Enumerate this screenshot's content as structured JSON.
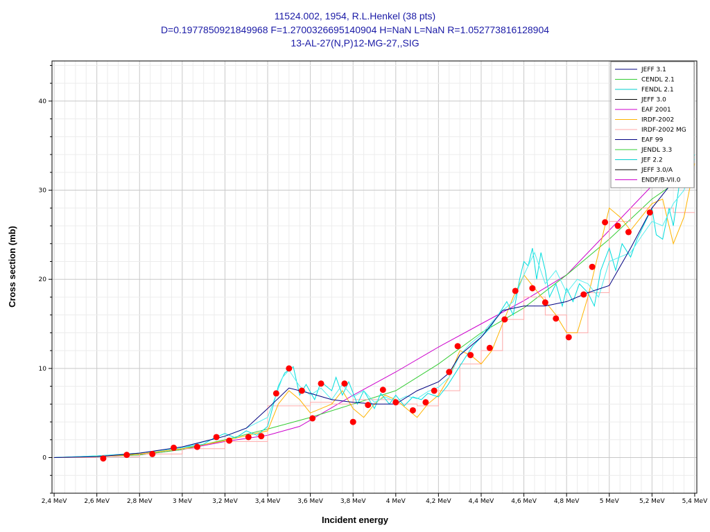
{
  "chart_data": {
    "type": "line",
    "title_lines": [
      "11524.002, 1954, R.L.Henkel (38 pts)",
      "D=0.1977850921849968 F=1.2700326695140904 H=NaN L=NaN R=1.052773816128904",
      "13-AL-27(N,P)12-MG-27,,SIG"
    ],
    "xlabel": "Incident energy",
    "ylabel": "Cross section (mb)",
    "xlim": [
      2.39,
      5.41
    ],
    "ylim": [
      -4,
      44.5
    ],
    "x_ticks": [
      2.4,
      2.6,
      2.8,
      3.0,
      3.2,
      3.4,
      3.6,
      3.8,
      4.0,
      4.2,
      4.4,
      4.6,
      4.8,
      5.0,
      5.2,
      5.4
    ],
    "x_tick_labels": [
      "2,4 MeV",
      "2,6 MeV",
      "2,8 MeV",
      "3 MeV",
      "3,2 MeV",
      "3,4 MeV",
      "3,6 MeV",
      "3,8 MeV",
      "4 MeV",
      "4,2 MeV",
      "4,4 MeV",
      "4,6 MeV",
      "4,8 MeV",
      "5 MeV",
      "5,2 MeV",
      "5,4 MeV"
    ],
    "y_ticks": [
      0,
      10,
      20,
      30,
      40
    ],
    "y_tick_labels": [
      "0",
      "10",
      "20",
      "30",
      "40"
    ],
    "grid": true,
    "legend_position": "top-right",
    "legend": [
      {
        "name": "JEFF 3.1",
        "color": "#000080"
      },
      {
        "name": "CENDL 2.1",
        "color": "#33cc33"
      },
      {
        "name": "FENDL 2.1",
        "color": "#00cccc"
      },
      {
        "name": "JEFF 3.0",
        "color": "#000000"
      },
      {
        "name": "EAF 2001",
        "color": "#cc00cc"
      },
      {
        "name": "IRDF-2002",
        "color": "#ffb300"
      },
      {
        "name": "IRDF-2002 MG",
        "color": "#ffaaaa"
      },
      {
        "name": "EAF 99",
        "color": "#000080"
      },
      {
        "name": "JENDL 3.3",
        "color": "#33cc33"
      },
      {
        "name": "JEF 2.2",
        "color": "#00cccc"
      },
      {
        "name": "JEFF 3.0/A",
        "color": "#000000"
      },
      {
        "name": "ENDF/B-VII.0",
        "color": "#cc00cc"
      }
    ],
    "series": [
      {
        "name": "EAF 2001",
        "color": "#cc00cc",
        "width": 1,
        "x": [
          2.4,
          2.8,
          3.0,
          3.2,
          3.4,
          3.55,
          3.8,
          4.0,
          4.2,
          4.4,
          4.6,
          4.8,
          5.0,
          5.2,
          5.35
        ],
        "y": [
          0,
          0.3,
          0.9,
          1.8,
          2.5,
          3.5,
          7.0,
          9.6,
          12.4,
          15.0,
          17.6,
          20.5,
          25.5,
          30.5,
          33.5
        ]
      },
      {
        "name": "CENDL 2.1",
        "color": "#33cc33",
        "width": 1,
        "x": [
          2.4,
          2.8,
          3.0,
          3.2,
          3.4,
          3.6,
          3.8,
          4.0,
          4.2,
          4.4,
          4.6,
          4.8,
          5.0,
          5.2,
          5.35
        ],
        "y": [
          0,
          0.3,
          0.9,
          2.0,
          3.2,
          4.5,
          6.0,
          7.5,
          10.5,
          14.0,
          16.8,
          20.5,
          24.5,
          29.0,
          31.5
        ]
      },
      {
        "name": "IRDF-2002 MG",
        "color": "#ffaaaa",
        "width": 1,
        "step": true,
        "x": [
          2.4,
          2.6,
          2.8,
          3.0,
          3.2,
          3.4,
          3.6,
          3.7,
          3.8,
          3.9,
          4.0,
          4.1,
          4.2,
          4.3,
          4.4,
          4.5,
          4.6,
          4.7,
          4.8,
          4.9,
          5.0,
          5.1,
          5.2,
          5.3,
          5.4
        ],
        "y": [
          0,
          0.1,
          0.4,
          1.0,
          1.8,
          5.8,
          6.2,
          6.0,
          6.5,
          6.5,
          6.0,
          5.8,
          7.5,
          10.5,
          12.0,
          15.5,
          18.0,
          16.0,
          14.0,
          18.5,
          26.5,
          28.0,
          28.0,
          27.5,
          27.5
        ]
      },
      {
        "name": "IRDF-2002",
        "color": "#ffb300",
        "width": 1,
        "x": [
          2.4,
          2.6,
          2.8,
          3.0,
          3.2,
          3.4,
          3.45,
          3.5,
          3.55,
          3.6,
          3.65,
          3.7,
          3.75,
          3.8,
          3.85,
          3.9,
          3.95,
          4.0,
          4.05,
          4.1,
          4.15,
          4.2,
          4.25,
          4.3,
          4.35,
          4.4,
          4.45,
          4.5,
          4.55,
          4.6,
          4.65,
          4.7,
          4.75,
          4.8,
          4.85,
          4.9,
          4.95,
          5.0,
          5.05,
          5.1,
          5.15,
          5.2,
          5.25,
          5.3,
          5.35,
          5.4
        ],
        "y": [
          0,
          0.1,
          0.4,
          1.0,
          1.9,
          3.0,
          6.0,
          7.5,
          6.5,
          5.0,
          5.5,
          6.0,
          7.5,
          5.5,
          4.5,
          6.0,
          7.0,
          6.5,
          5.5,
          4.5,
          6.0,
          7.0,
          9.0,
          12.0,
          11.5,
          10.5,
          12.0,
          15.0,
          18.0,
          20.5,
          19.0,
          17.5,
          16.0,
          14.0,
          14.0,
          18.0,
          23.0,
          28.0,
          27.0,
          25.5,
          27.0,
          28.5,
          29.0,
          24.0,
          27.0,
          33.0
        ]
      },
      {
        "name": "FENDL 2.1",
        "color": "#00dddd",
        "width": 1,
        "x": [
          2.4,
          2.6,
          2.8,
          3.0,
          3.1,
          3.15,
          3.2,
          3.25,
          3.3,
          3.35,
          3.4,
          3.45,
          3.48,
          3.52,
          3.55,
          3.58,
          3.62,
          3.65,
          3.7,
          3.72,
          3.75,
          3.78,
          3.82,
          3.85,
          3.9,
          3.93,
          3.97,
          4.0,
          4.04,
          4.08,
          4.12,
          4.15,
          4.2,
          4.24,
          4.28,
          4.32,
          4.36,
          4.4,
          4.44,
          4.48,
          4.52,
          4.55,
          4.58,
          4.6,
          4.62,
          4.64,
          4.66,
          4.68,
          4.7,
          4.72,
          4.75,
          4.78,
          4.8,
          4.83,
          4.86,
          4.9,
          4.93,
          4.96,
          5.0,
          5.03,
          5.06,
          5.1,
          5.13,
          5.16,
          5.2,
          5.22,
          5.25,
          5.28,
          5.3,
          5.33,
          5.36,
          5.4
        ],
        "y": [
          0,
          0.2,
          0.5,
          1.1,
          1.5,
          2.2,
          2.7,
          2.2,
          3.0,
          2.5,
          3.5,
          8.0,
          9.5,
          10.2,
          7.0,
          8.2,
          6.5,
          8.5,
          7.5,
          9.0,
          7.0,
          8.5,
          6.0,
          7.5,
          5.5,
          7.2,
          6.0,
          7.0,
          5.8,
          6.8,
          6.5,
          7.2,
          6.8,
          8.0,
          9.5,
          11.0,
          12.5,
          13.5,
          14.5,
          16.0,
          17.5,
          16.0,
          20.0,
          22.0,
          21.5,
          23.5,
          20.0,
          23.0,
          21.0,
          18.0,
          19.5,
          17.0,
          19.0,
          17.5,
          19.5,
          18.5,
          17.0,
          21.0,
          23.5,
          21.0,
          24.0,
          22.5,
          24.5,
          26.0,
          28.0,
          25.0,
          24.5,
          28.0,
          26.0,
          31.0,
          32.0,
          34.0
        ]
      },
      {
        "name": "JEF 2.2",
        "color": "#55eeee",
        "width": 1,
        "x": [
          2.4,
          2.6,
          2.8,
          3.0,
          3.2,
          3.3,
          3.4,
          3.47,
          3.5,
          3.55,
          3.6,
          3.65,
          3.7,
          3.75,
          3.8,
          3.85,
          3.9,
          3.95,
          4.0,
          4.05,
          4.1,
          4.15,
          4.2,
          4.25,
          4.3,
          4.35,
          4.4,
          4.45,
          4.5,
          4.55,
          4.6,
          4.65,
          4.7,
          4.75,
          4.8,
          4.85,
          4.9,
          4.95,
          5.0,
          5.05,
          5.1,
          5.15,
          5.2,
          5.25,
          5.3,
          5.35,
          5.4
        ],
        "y": [
          0,
          0.2,
          0.5,
          1.1,
          2.4,
          3.3,
          4.5,
          9.0,
          9.8,
          8.0,
          7.0,
          7.8,
          6.5,
          8.2,
          6.8,
          7.5,
          6.2,
          6.8,
          6.3,
          6.9,
          6.6,
          7.4,
          7.9,
          9.0,
          11.5,
          12.8,
          13.8,
          15.2,
          16.5,
          17.5,
          20.5,
          23.0,
          19.5,
          21.0,
          18.5,
          20.0,
          19.5,
          18.0,
          22.0,
          22.5,
          23.0,
          24.8,
          26.5,
          26.0,
          28.5,
          30.0,
          33.5
        ]
      },
      {
        "name": "JEFF 3.1",
        "color": "#000080",
        "width": 1,
        "x": [
          2.4,
          2.6,
          2.8,
          3.0,
          3.2,
          3.3,
          3.4,
          3.5,
          3.6,
          3.7,
          3.8,
          3.9,
          4.0,
          4.1,
          4.2,
          4.25,
          4.3,
          4.4,
          4.5,
          4.6,
          4.7,
          4.8,
          4.9,
          5.0,
          5.1,
          5.2,
          5.3,
          5.35
        ],
        "y": [
          0,
          0.1,
          0.5,
          1.2,
          2.4,
          3.3,
          5.5,
          7.8,
          7.2,
          6.5,
          6.2,
          6.0,
          6.0,
          7.5,
          8.5,
          9.5,
          11.5,
          13.5,
          16.5,
          17.0,
          17.0,
          17.5,
          18.5,
          19.3,
          23.5,
          28.0,
          31.0,
          32.0
        ]
      }
    ],
    "points": {
      "name": "R.L.Henkel 1954",
      "color": "#ff0000",
      "x": [
        2.63,
        2.74,
        2.86,
        2.96,
        3.07,
        3.16,
        3.22,
        3.31,
        3.37,
        3.44,
        3.5,
        3.56,
        3.61,
        3.65,
        3.76,
        3.8,
        3.87,
        3.94,
        4.0,
        4.08,
        4.14,
        4.18,
        4.25,
        4.29,
        4.35,
        4.44,
        4.51,
        4.56,
        4.64,
        4.7,
        4.75,
        4.81,
        4.88,
        4.92,
        4.98,
        5.04,
        5.09,
        5.19
      ],
      "y": [
        -0.1,
        0.3,
        0.4,
        1.1,
        1.2,
        2.3,
        1.9,
        2.3,
        2.4,
        7.2,
        10.0,
        7.5,
        4.4,
        8.3,
        8.3,
        4.0,
        5.9,
        7.6,
        6.2,
        5.3,
        6.2,
        7.5,
        9.6,
        12.5,
        11.5,
        12.3,
        15.5,
        18.7,
        19.0,
        17.4,
        15.6,
        13.5,
        18.3,
        21.4,
        26.4,
        26.0,
        25.3,
        27.5
      ]
    }
  }
}
